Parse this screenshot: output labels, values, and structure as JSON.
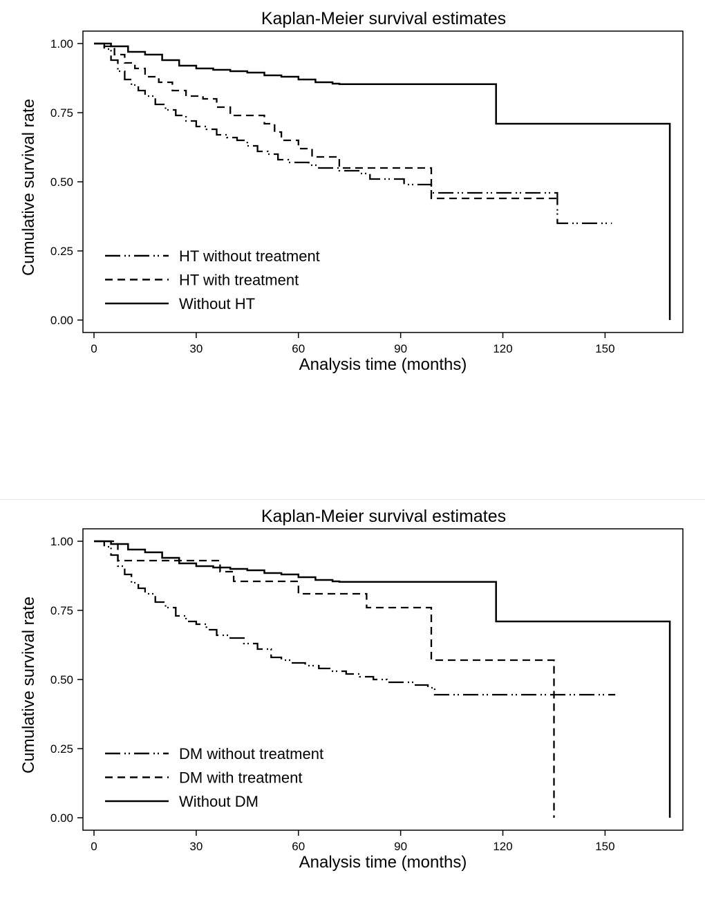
{
  "chart_data": [
    {
      "type": "line",
      "title": "Kaplan-Meier survival estimates",
      "xlabel": "Analysis time (months)",
      "ylabel": "Cumulative survival rate",
      "xlim": [
        0,
        172
      ],
      "ylim": [
        0,
        1
      ],
      "xticks": [
        "0",
        "30",
        "60",
        "90",
        "120",
        "150"
      ],
      "yticks": [
        "0.00",
        "0.25",
        "0.50",
        "0.75",
        "1.00"
      ],
      "legend_position": "bottom-left",
      "series": [
        {
          "name": "HT without treatment",
          "style": "longdash-dot-dot",
          "x": [
            0,
            3,
            5,
            7,
            9,
            11,
            13,
            15,
            18,
            21,
            24,
            27,
            30,
            33,
            36,
            39,
            42,
            45,
            48,
            51,
            54,
            57,
            60,
            63,
            66,
            69,
            72,
            75,
            78,
            81,
            85,
            88,
            91,
            99,
            136,
            152
          ],
          "y": [
            1.0,
            0.98,
            0.94,
            0.9,
            0.87,
            0.85,
            0.83,
            0.81,
            0.78,
            0.76,
            0.74,
            0.72,
            0.7,
            0.69,
            0.67,
            0.66,
            0.65,
            0.63,
            0.61,
            0.6,
            0.58,
            0.57,
            0.57,
            0.56,
            0.55,
            0.55,
            0.54,
            0.54,
            0.53,
            0.51,
            0.51,
            0.51,
            0.49,
            0.46,
            0.35,
            0.35
          ]
        },
        {
          "name": "HT with treatment",
          "style": "dash",
          "x": [
            0,
            3,
            6,
            9,
            12,
            15,
            19,
            23,
            27,
            32,
            36,
            40,
            46,
            50,
            53,
            55,
            58,
            60,
            64,
            72,
            99,
            135,
            136
          ],
          "y": [
            1.0,
            0.99,
            0.96,
            0.93,
            0.91,
            0.88,
            0.86,
            0.83,
            0.81,
            0.8,
            0.77,
            0.74,
            0.74,
            0.71,
            0.68,
            0.65,
            0.65,
            0.62,
            0.59,
            0.55,
            0.44,
            0.44,
            0.44
          ]
        },
        {
          "name": "Without HT",
          "style": "solid",
          "x": [
            0,
            5,
            10,
            15,
            20,
            25,
            30,
            35,
            40,
            45,
            50,
            55,
            60,
            65,
            70,
            72,
            118,
            169,
            169
          ],
          "y": [
            1.0,
            0.99,
            0.97,
            0.96,
            0.94,
            0.92,
            0.91,
            0.905,
            0.9,
            0.895,
            0.885,
            0.88,
            0.87,
            0.86,
            0.855,
            0.853,
            0.71,
            0.71,
            0.0
          ]
        }
      ]
    },
    {
      "type": "line",
      "title": "Kaplan-Meier survival estimates",
      "xlabel": "Analysis time (months)",
      "ylabel": "Cumulative survival rate",
      "xlim": [
        0,
        172
      ],
      "ylim": [
        0,
        1
      ],
      "xticks": [
        "0",
        "30",
        "60",
        "90",
        "120",
        "150"
      ],
      "yticks": [
        "0.00",
        "0.25",
        "0.50",
        "0.75",
        "1.00"
      ],
      "legend_position": "bottom-left",
      "series": [
        {
          "name": "DM without treatment",
          "style": "longdash-dot-dot",
          "x": [
            0,
            3,
            5,
            7,
            9,
            11,
            13,
            15,
            18,
            21,
            24,
            27,
            30,
            33,
            36,
            40,
            44,
            48,
            52,
            55,
            58,
            62,
            66,
            70,
            74,
            78,
            82,
            86,
            90,
            94,
            98,
            100,
            153
          ],
          "y": [
            1.0,
            0.98,
            0.95,
            0.91,
            0.88,
            0.85,
            0.83,
            0.81,
            0.78,
            0.76,
            0.73,
            0.71,
            0.7,
            0.68,
            0.66,
            0.65,
            0.63,
            0.61,
            0.58,
            0.57,
            0.56,
            0.55,
            0.54,
            0.53,
            0.52,
            0.51,
            0.5,
            0.49,
            0.49,
            0.48,
            0.47,
            0.445,
            0.445
          ]
        },
        {
          "name": "DM with treatment",
          "style": "dash",
          "x": [
            0,
            6,
            7,
            36,
            37,
            41,
            60,
            80,
            99,
            135,
            135
          ],
          "y": [
            1.0,
            0.99,
            0.93,
            0.93,
            0.89,
            0.855,
            0.81,
            0.76,
            0.57,
            0.57,
            0.0
          ]
        },
        {
          "name": "Without DM",
          "style": "solid",
          "x": [
            0,
            5,
            10,
            15,
            20,
            25,
            30,
            35,
            40,
            45,
            50,
            55,
            60,
            65,
            70,
            72,
            118,
            169,
            169
          ],
          "y": [
            1.0,
            0.99,
            0.97,
            0.96,
            0.94,
            0.92,
            0.91,
            0.905,
            0.9,
            0.895,
            0.885,
            0.88,
            0.87,
            0.86,
            0.855,
            0.853,
            0.71,
            0.71,
            0.0
          ]
        }
      ]
    }
  ]
}
